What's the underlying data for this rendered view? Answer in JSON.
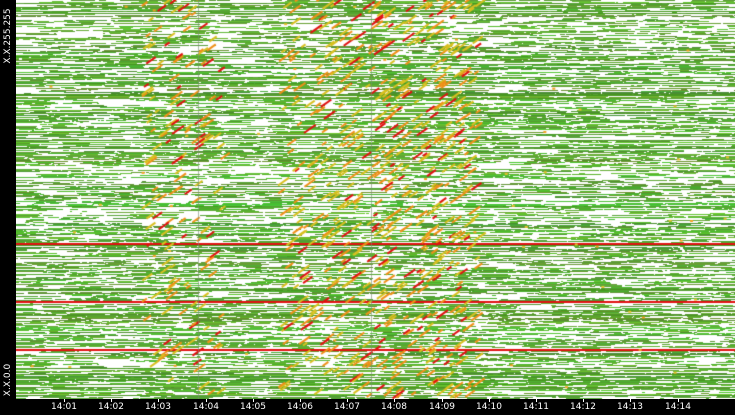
{
  "y_axis": {
    "top_label": "X.X.255.255",
    "bottom_label": "X.X.0.0"
  },
  "x_axis": {
    "ticks": [
      "14:01",
      "14:02",
      "14:03",
      "14:04",
      "14:05",
      "14:06",
      "14:07",
      "14:08",
      "14:09",
      "14:10",
      "14:11",
      "14:12",
      "14:13",
      "14:14"
    ]
  },
  "colors": {
    "background": "#000000",
    "plot_background": "#ffffff",
    "low_activity": "#5fb53a",
    "medium_activity": "#f0a020",
    "high_activity": "#e01010",
    "axis_text": "#ffffff"
  },
  "highlighted_rows": [
    0.61,
    0.755,
    0.875
  ]
}
